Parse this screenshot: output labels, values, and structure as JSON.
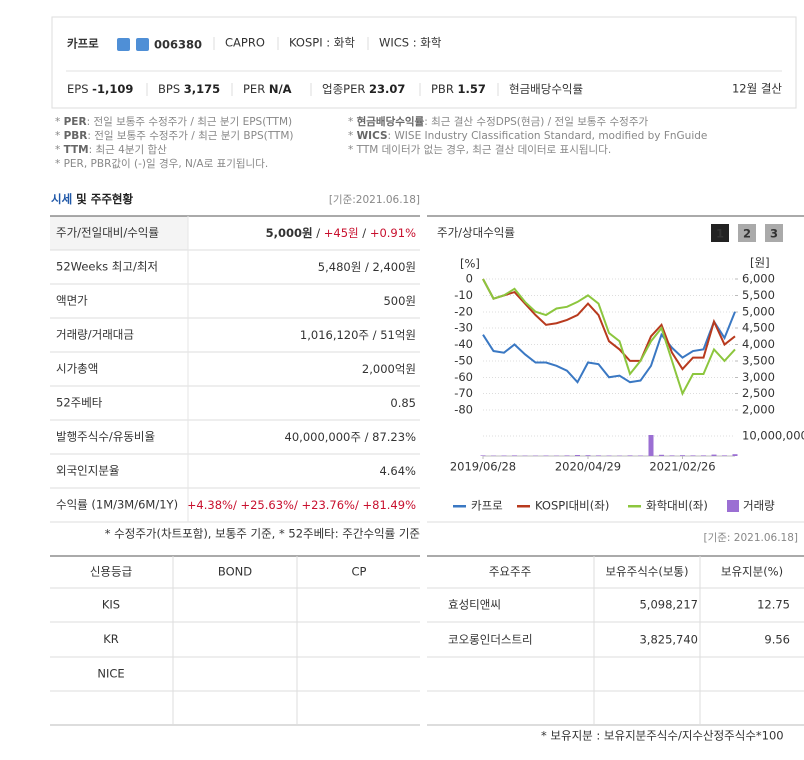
{
  "header": {
    "name": "카프로",
    "code": "006380",
    "tags": [
      "CAPRO",
      "KOSPI : 화학",
      "WICS : 화학"
    ],
    "metrics": [
      {
        "label": "EPS",
        "value": "-1,109"
      },
      {
        "label": "BPS",
        "value": "3,175"
      },
      {
        "label": "PER",
        "value": "N/A"
      },
      {
        "label": "업종PER",
        "value": "23.07"
      },
      {
        "label": "PBR",
        "value": "1.57"
      },
      {
        "label": "현금배당수익률"
      }
    ],
    "fiscal": "12월 결산"
  },
  "notes": {
    "left": [
      {
        "mark": "*",
        "term": "PER",
        "text": ": 전일 보통주 수정주가 / 최근 분기 EPS(TTM)"
      },
      {
        "mark": "*",
        "term": "PBR",
        "text": ": 전일 보통주 수정주가 / 최근 분기 BPS(TTM)"
      },
      {
        "mark": "*",
        "term": "TTM",
        "text": ": 최근 4분기 합산"
      },
      {
        "mark": "*",
        "text": "PER, PBR값이 (-)일 경우, N/A로 표기됩니다."
      }
    ],
    "right": [
      {
        "mark": "*",
        "term": "현금배당수익률",
        "text": ": 최근 결산 수정DPS(현금) / 전일 보통주 수정주가"
      },
      {
        "mark": "*",
        "term": "WICS",
        "text": ": WISE Industry Classification Standard, modified by FnGuide"
      },
      {
        "mark": "*",
        "text": "TTM 데이터가 없는 경우, 최근 결산 데이터로 표시됩니다."
      }
    ]
  },
  "section": {
    "highlight": "시세",
    "rest": " 및 주주현황",
    "date": "[기준:2021.06.18]"
  },
  "market_table": {
    "rows": [
      {
        "label": "주가/전일대비/수익률",
        "value": [
          "5,000원",
          " / ",
          "+45원",
          " / ",
          "+0.91%"
        ]
      },
      {
        "label": "52Weeks 최고/최저",
        "value": [
          "5,480원 / 2,400원"
        ]
      },
      {
        "label": "액면가",
        "value": [
          "500원"
        ]
      },
      {
        "label": "거래량/거래대금",
        "value": [
          "1,016,120주 / 51억원"
        ]
      },
      {
        "label": "시가총액",
        "value": [
          "2,000억원"
        ]
      },
      {
        "label": "52주베타",
        "value": [
          "0.85"
        ]
      },
      {
        "label": "발행주식수/유동비율",
        "value": [
          "40,000,000주 / 87.23%"
        ]
      },
      {
        "label": "외국인지분율",
        "value": [
          "4.64%"
        ]
      },
      {
        "label": "수익률 (1M/3M/6M/1Y)",
        "value": [
          "+4.38%/ +25.63%/ +23.76%/ +81.49%"
        ]
      }
    ],
    "footnote": "* 수정주가(차트포함), 보통주 기준, * 52주베타: 주간수익률 기준"
  },
  "chart_data": {
    "type": "line",
    "title": "주가/상대수익률",
    "buttons": [
      "1",
      "2",
      "3"
    ],
    "y_unit": "[%]",
    "y2_unit": "[원]",
    "x": [
      0,
      1,
      2,
      3,
      4,
      5,
      6,
      7,
      8,
      9,
      10,
      11,
      12,
      13,
      14,
      15,
      16,
      17,
      18,
      19,
      20,
      21,
      22,
      23,
      24
    ],
    "xlim": [
      0,
      24
    ],
    "xticks": [
      {
        "value": 0,
        "label": "2019/06/28"
      },
      {
        "value": 10,
        "label": "2020/04/29"
      },
      {
        "value": 19,
        "label": "2021/02/26"
      }
    ],
    "ylim": [
      -80,
      0
    ],
    "yticks": [
      0,
      -10,
      -20,
      -30,
      -40,
      -50,
      -60,
      -70,
      -80
    ],
    "y2lim": [
      2000,
      6000
    ],
    "y2ticks": [
      {
        "value": 6000,
        "label": "6,000"
      },
      {
        "value": 5500,
        "label": "5,500"
      },
      {
        "value": 5000,
        "label": "5,000"
      },
      {
        "value": 4500,
        "label": "4,500"
      },
      {
        "value": 4000,
        "label": "4,000"
      },
      {
        "value": 3500,
        "label": "3,500"
      },
      {
        "value": 3000,
        "label": "3,000"
      },
      {
        "value": 2500,
        "label": "2,500"
      },
      {
        "value": 2000,
        "label": "2,000"
      }
    ],
    "volume_lim": [
      0,
      10000000
    ],
    "volume_ticks": [
      {
        "value": 10000000,
        "label": "10,000,000"
      }
    ],
    "grid": true,
    "series": [
      {
        "name": "카프로",
        "color": "#3a78c3",
        "axis": "y2",
        "values": [
          4300,
          3800,
          3750,
          4000,
          3700,
          3450,
          3450,
          3350,
          3200,
          2850,
          3450,
          3400,
          3000,
          3050,
          2850,
          2900,
          3350,
          4300,
          3900,
          3600,
          3800,
          3850,
          4700,
          4200,
          5000
        ]
      },
      {
        "name": "KOSPI대비(좌)",
        "color": "#b83a1e",
        "values": [
          0,
          -12,
          -10,
          -8,
          -15,
          -22,
          -28,
          -27,
          -25,
          -22,
          -15,
          -22,
          -38,
          -43,
          -50,
          -50,
          -35,
          -28,
          -45,
          -55,
          -48,
          -48,
          -26,
          -40,
          -35
        ]
      },
      {
        "name": "화학대비(좌)",
        "color": "#8cc63e",
        "values": [
          0,
          -12,
          -10,
          -6,
          -14,
          -20,
          -22,
          -18,
          -17,
          -14,
          -10,
          -15,
          -33,
          -38,
          -58,
          -50,
          -38,
          -30,
          -50,
          -70,
          -58,
          -58,
          -43,
          -50,
          -43
        ]
      },
      {
        "name": "거래량",
        "color": "#9b6fd3",
        "type": "bar",
        "axis": "volume",
        "values": [
          300000,
          200000,
          250000,
          300000,
          200000,
          200000,
          250000,
          200000,
          300000,
          500000,
          400000,
          300000,
          250000,
          200000,
          300000,
          250000,
          10500000,
          600000,
          300000,
          400000,
          300000,
          300000,
          700000,
          300000,
          900000
        ]
      }
    ]
  },
  "credit_table": {
    "headers": [
      "신용등급",
      "BOND",
      "CP"
    ],
    "rows": [
      "KIS",
      "KR",
      "NICE"
    ]
  },
  "holders_table": {
    "date": "[기준: 2021.06.18]",
    "headers": [
      "주요주주",
      "보유주식수(보통)",
      "보유지분(%)"
    ],
    "rows": [
      [
        "효성티앤씨",
        "5,098,217",
        "12.75"
      ],
      [
        "코오롱인더스트리",
        "3,825,740",
        "9.56"
      ]
    ],
    "footnote": "* 보유지분 : 보유지분주식수/지수산정주식수*100"
  }
}
